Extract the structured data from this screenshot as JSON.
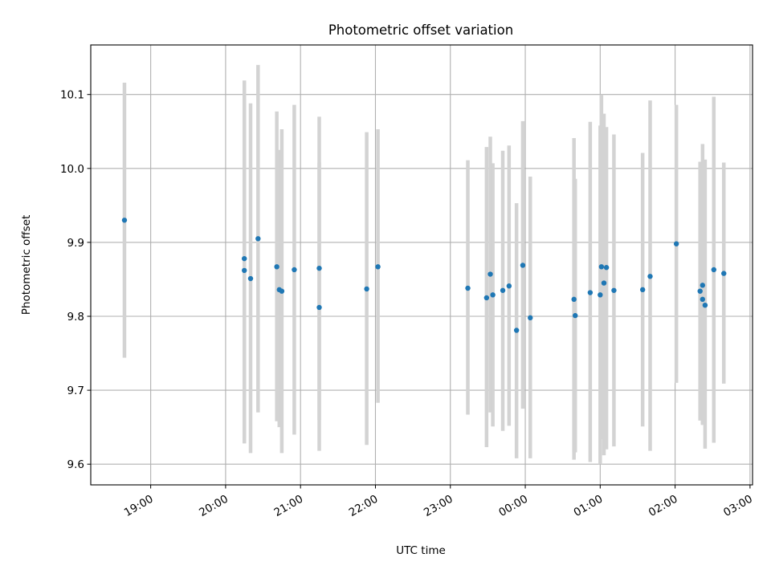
{
  "chart_data": {
    "type": "scatter",
    "title": "Photometric offset variation",
    "xlabel": "UTC time",
    "ylabel": "Photometric offset",
    "x_tick_labels": [
      "19:00",
      "20:00",
      "21:00",
      "22:00",
      "23:00",
      "00:00",
      "01:00",
      "02:00",
      "03:00"
    ],
    "y_ticks": [
      9.6,
      9.7,
      9.8,
      9.9,
      10.0,
      10.1
    ],
    "y_tick_labels": [
      "9.6",
      "9.7",
      "9.8",
      "9.9",
      "10.0",
      "10.1"
    ],
    "xlim": [
      "18:12",
      "03:02"
    ],
    "ylim": [
      9.572,
      10.167
    ],
    "grid": true,
    "marker_color": "#1f77b4",
    "errorbar_color": "#d3d3d3",
    "points": [
      {
        "x": "18:39",
        "y": 9.93,
        "yerr": [
          9.744,
          10.116
        ]
      },
      {
        "x": "20:15",
        "y": 9.862,
        "yerr": [
          9.628,
          10.119
        ]
      },
      {
        "x": "20:15",
        "y": 9.878,
        "yerr": [
          9.635,
          10.095
        ]
      },
      {
        "x": "20:20",
        "y": 9.851,
        "yerr": [
          9.615,
          10.088
        ]
      },
      {
        "x": "20:26",
        "y": 9.905,
        "yerr": [
          9.67,
          10.14
        ]
      },
      {
        "x": "20:41",
        "y": 9.867,
        "yerr": [
          9.658,
          10.077
        ]
      },
      {
        "x": "20:43",
        "y": 9.836,
        "yerr": [
          9.65,
          10.025
        ]
      },
      {
        "x": "20:45",
        "y": 9.834,
        "yerr": [
          9.615,
          10.053
        ]
      },
      {
        "x": "20:55",
        "y": 9.863,
        "yerr": [
          9.64,
          10.086
        ]
      },
      {
        "x": "21:15",
        "y": 9.865,
        "yerr": [
          9.66,
          10.07
        ]
      },
      {
        "x": "21:15",
        "y": 9.812,
        "yerr": [
          9.618,
          10.008
        ]
      },
      {
        "x": "21:53",
        "y": 9.837,
        "yerr": [
          9.626,
          10.049
        ]
      },
      {
        "x": "22:02",
        "y": 9.867,
        "yerr": [
          9.683,
          10.053
        ]
      },
      {
        "x": "23:14",
        "y": 9.838,
        "yerr": [
          9.667,
          10.011
        ]
      },
      {
        "x": "23:29",
        "y": 9.825,
        "yerr": [
          9.623,
          10.029
        ]
      },
      {
        "x": "23:32",
        "y": 9.857,
        "yerr": [
          9.67,
          10.043
        ]
      },
      {
        "x": "23:34",
        "y": 9.829,
        "yerr": [
          9.651,
          10.007
        ]
      },
      {
        "x": "23:42",
        "y": 9.835,
        "yerr": [
          9.645,
          10.024
        ]
      },
      {
        "x": "23:47",
        "y": 9.841,
        "yerr": [
          9.652,
          10.031
        ]
      },
      {
        "x": "23:53",
        "y": 9.781,
        "yerr": [
          9.608,
          9.953
        ]
      },
      {
        "x": "23:58",
        "y": 9.869,
        "yerr": [
          9.675,
          10.064
        ]
      },
      {
        "x": "00:04",
        "y": 9.798,
        "yerr": [
          9.608,
          9.989
        ]
      },
      {
        "x": "00:39",
        "y": 9.823,
        "yerr": [
          9.606,
          10.041
        ]
      },
      {
        "x": "00:40",
        "y": 9.801,
        "yerr": [
          9.616,
          9.986
        ]
      },
      {
        "x": "00:52",
        "y": 9.832,
        "yerr": [
          9.603,
          10.063
        ]
      },
      {
        "x": "01:00",
        "y": 9.829,
        "yerr": [
          9.6,
          10.058
        ]
      },
      {
        "x": "01:01",
        "y": 9.867,
        "yerr": [
          9.634,
          10.1
        ]
      },
      {
        "x": "01:03",
        "y": 9.845,
        "yerr": [
          9.612,
          10.074
        ]
      },
      {
        "x": "01:05",
        "y": 9.866,
        "yerr": [
          9.62,
          10.056
        ]
      },
      {
        "x": "01:11",
        "y": 9.835,
        "yerr": [
          9.624,
          10.046
        ]
      },
      {
        "x": "01:34",
        "y": 9.836,
        "yerr": [
          9.651,
          10.021
        ]
      },
      {
        "x": "01:40",
        "y": 9.854,
        "yerr": [
          9.618,
          10.092
        ]
      },
      {
        "x": "02:01",
        "y": 9.898,
        "yerr": [
          9.71,
          10.086
        ]
      },
      {
        "x": "02:20",
        "y": 9.834,
        "yerr": [
          9.659,
          10.009
        ]
      },
      {
        "x": "02:22",
        "y": 9.842,
        "yerr": [
          9.653,
          10.033
        ]
      },
      {
        "x": "02:22",
        "y": 9.823,
        "yerr": [
          9.655,
          10.009
        ]
      },
      {
        "x": "02:24",
        "y": 9.815,
        "yerr": [
          9.621,
          10.012
        ]
      },
      {
        "x": "02:31",
        "y": 9.863,
        "yerr": [
          9.629,
          10.097
        ]
      },
      {
        "x": "02:39",
        "y": 9.858,
        "yerr": [
          9.709,
          10.008
        ]
      }
    ]
  }
}
